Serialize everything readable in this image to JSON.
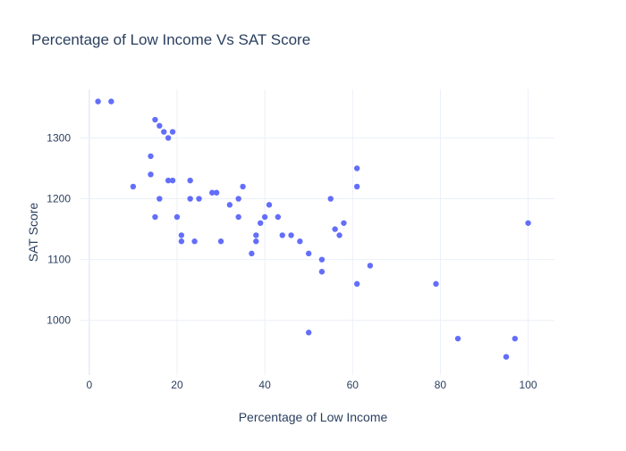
{
  "chart_data": {
    "type": "scatter",
    "title": "Percentage of Low Income Vs SAT Score",
    "xlabel": "Percentage of Low Income",
    "ylabel": "SAT Score",
    "xlim": [
      -2,
      106
    ],
    "ylim": [
      910,
      1380
    ],
    "xticks": [
      0,
      20,
      40,
      60,
      80,
      100
    ],
    "yticks": [
      1000,
      1100,
      1200,
      1300
    ],
    "grid": true,
    "legend": "none",
    "marker_color": "#636efa",
    "points": [
      {
        "x": 2,
        "y": 1360
      },
      {
        "x": 5,
        "y": 1360
      },
      {
        "x": 10,
        "y": 1220
      },
      {
        "x": 14,
        "y": 1270
      },
      {
        "x": 14,
        "y": 1240
      },
      {
        "x": 15,
        "y": 1330
      },
      {
        "x": 15,
        "y": 1170
      },
      {
        "x": 16,
        "y": 1320
      },
      {
        "x": 16,
        "y": 1200
      },
      {
        "x": 17,
        "y": 1310
      },
      {
        "x": 18,
        "y": 1300
      },
      {
        "x": 18,
        "y": 1230
      },
      {
        "x": 19,
        "y": 1310
      },
      {
        "x": 19,
        "y": 1230
      },
      {
        "x": 20,
        "y": 1170
      },
      {
        "x": 21,
        "y": 1140
      },
      {
        "x": 21,
        "y": 1130
      },
      {
        "x": 23,
        "y": 1230
      },
      {
        "x": 23,
        "y": 1200
      },
      {
        "x": 24,
        "y": 1130
      },
      {
        "x": 25,
        "y": 1200
      },
      {
        "x": 28,
        "y": 1210
      },
      {
        "x": 29,
        "y": 1210
      },
      {
        "x": 30,
        "y": 1130
      },
      {
        "x": 32,
        "y": 1190
      },
      {
        "x": 34,
        "y": 1200
      },
      {
        "x": 34,
        "y": 1170
      },
      {
        "x": 35,
        "y": 1220
      },
      {
        "x": 37,
        "y": 1110
      },
      {
        "x": 38,
        "y": 1140
      },
      {
        "x": 38,
        "y": 1130
      },
      {
        "x": 39,
        "y": 1160
      },
      {
        "x": 40,
        "y": 1170
      },
      {
        "x": 41,
        "y": 1190
      },
      {
        "x": 43,
        "y": 1170
      },
      {
        "x": 44,
        "y": 1140
      },
      {
        "x": 46,
        "y": 1140
      },
      {
        "x": 48,
        "y": 1130
      },
      {
        "x": 50,
        "y": 1110
      },
      {
        "x": 50,
        "y": 980
      },
      {
        "x": 53,
        "y": 1100
      },
      {
        "x": 53,
        "y": 1080
      },
      {
        "x": 55,
        "y": 1200
      },
      {
        "x": 56,
        "y": 1150
      },
      {
        "x": 57,
        "y": 1140
      },
      {
        "x": 58,
        "y": 1160
      },
      {
        "x": 61,
        "y": 1250
      },
      {
        "x": 61,
        "y": 1220
      },
      {
        "x": 61,
        "y": 1060
      },
      {
        "x": 64,
        "y": 1090
      },
      {
        "x": 79,
        "y": 1060
      },
      {
        "x": 84,
        "y": 970
      },
      {
        "x": 95,
        "y": 940
      },
      {
        "x": 97,
        "y": 970
      },
      {
        "x": 100,
        "y": 1160
      }
    ]
  }
}
